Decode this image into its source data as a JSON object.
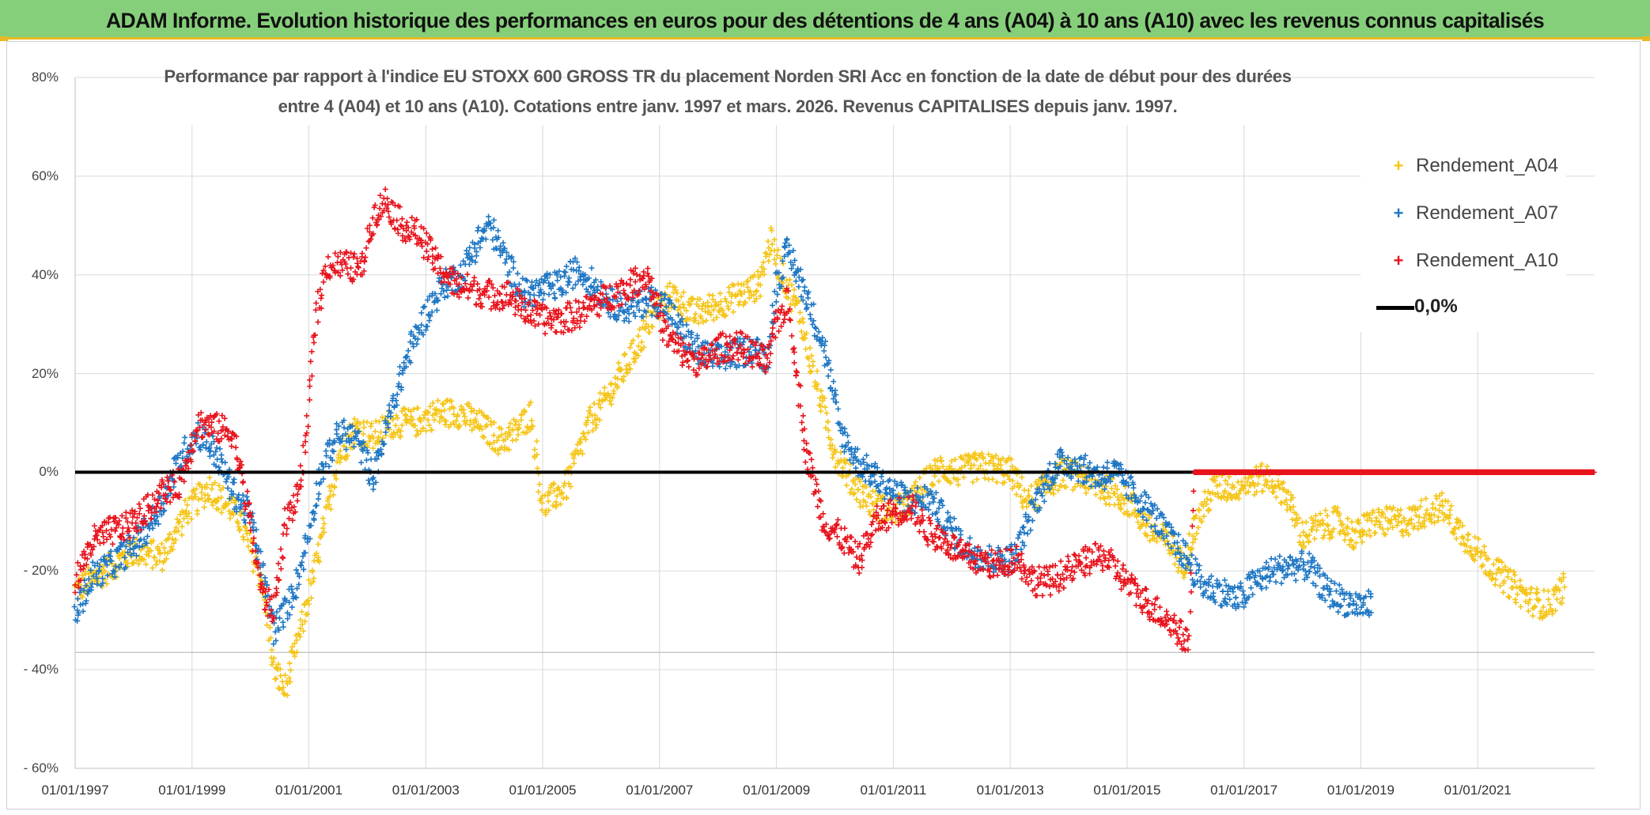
{
  "header": {
    "title": "ADAM Informe. Evolution historique des performances en euros pour des détentions de 4 ans (A04) à 10 ans (A10) avec les revenus connus capitalisés"
  },
  "colors": {
    "header_bg": "#86cf7a",
    "accent": "#e8b923",
    "A04": "#f5c518",
    "A07": "#1f77c4",
    "A10": "#e8141d",
    "zero_line": "#000000",
    "grid": "#d9d9d9"
  },
  "chart_data": {
    "type": "scatter",
    "title_line1": "Performance par rapport à l'indice EU STOXX 600 GROSS TR  du placement Norden SRI Acc en fonction de la date de début pour des durées",
    "title_line2": "entre 4 (A04) et 10 ans (A10). Cotations entre janv. 1997 et mars. 2026. Revenus CAPITALISES depuis janv. 1997.",
    "xlabel": "",
    "ylabel": "",
    "xlim": [
      1997.0,
      2023.0
    ],
    "ylim": [
      -60,
      80
    ],
    "y_ticks": [
      {
        "value": 80,
        "label": "80%"
      },
      {
        "value": 60,
        "label": "60%"
      },
      {
        "value": 40,
        "label": "40%"
      },
      {
        "value": 20,
        "label": "20%"
      },
      {
        "value": 0,
        "label": "0%"
      },
      {
        "value": -20,
        "label": "- 20%"
      },
      {
        "value": -40,
        "label": "- 40%"
      },
      {
        "value": -60,
        "label": "- 60%"
      }
    ],
    "x_ticks": [
      {
        "value": 1997,
        "label": "01/01/1997"
      },
      {
        "value": 1999,
        "label": "01/01/1999"
      },
      {
        "value": 2001,
        "label": "01/01/2001"
      },
      {
        "value": 2003,
        "label": "01/01/2003"
      },
      {
        "value": 2005,
        "label": "01/01/2005"
      },
      {
        "value": 2007,
        "label": "01/01/2007"
      },
      {
        "value": 2009,
        "label": "01/01/2009"
      },
      {
        "value": 2011,
        "label": "01/01/2011"
      },
      {
        "value": 2013,
        "label": "01/01/2013"
      },
      {
        "value": 2015,
        "label": "01/01/2015"
      },
      {
        "value": 2017,
        "label": "01/01/2017"
      },
      {
        "value": 2019,
        "label": "01/01/2019"
      },
      {
        "value": 2021,
        "label": "01/01/2021"
      }
    ],
    "grid": true,
    "legend_position": "top-right",
    "reference_line": {
      "name": "0,0%",
      "value": 0
    },
    "series": [
      {
        "name": "Rendement_A04",
        "marker": "+",
        "color_key": "A04",
        "x": [
          1997.0,
          1997.5,
          1998.0,
          1998.5,
          1998.9,
          1999.3,
          1999.8,
          2000.2,
          2000.4,
          2000.6,
          2000.9,
          2001.2,
          2001.5,
          2001.8,
          2002.1,
          2002.4,
          2002.8,
          2003.2,
          2003.6,
          2004.0,
          2004.3,
          2004.6,
          2004.8,
          2005.0,
          2005.4,
          2005.8,
          2006.1,
          2006.5,
          2006.9,
          2007.2,
          2007.6,
          2008.0,
          2008.4,
          2008.7,
          2008.9,
          2009.1,
          2009.4,
          2009.7,
          2010.0,
          2010.3,
          2010.6,
          2010.9,
          2011.2,
          2011.5,
          2011.8,
          2012.1,
          2012.4,
          2012.7,
          2013.0,
          2013.3,
          2013.6,
          2013.9,
          2014.2,
          2014.5,
          2014.8,
          2015.1,
          2015.4,
          2015.7,
          2015.95,
          2016.2,
          2016.5,
          2016.8,
          2017.1,
          2017.4,
          2017.7,
          2018.0,
          2018.3,
          2018.6,
          2018.9,
          2019.2,
          2019.5,
          2019.8,
          2020.1,
          2020.4,
          2020.7,
          2021.0,
          2021.3,
          2021.6,
          2021.9,
          2022.2,
          2022.5
        ],
        "values": [
          -24,
          -20,
          -16,
          -17,
          -8,
          -3,
          -9,
          -22,
          -40,
          -44,
          -30,
          -15,
          3,
          9,
          7,
          10,
          10,
          12,
          12,
          9,
          6,
          9,
          12,
          -7,
          -3,
          10,
          15,
          23,
          32,
          36,
          32,
          34,
          36,
          38,
          47,
          40,
          32,
          17,
          4,
          -2,
          -6,
          -8,
          -7,
          -3,
          1,
          0,
          1,
          1,
          0,
          -6,
          -3,
          0,
          -1,
          -3,
          -4,
          -7,
          -12,
          -14,
          -19,
          -10,
          -3,
          -3,
          -2,
          -1,
          -4,
          -13,
          -11,
          -10,
          -13,
          -10,
          -10,
          -10,
          -8,
          -7,
          -12,
          -16,
          -20,
          -23,
          -26,
          -27,
          -23
        ]
      },
      {
        "name": "Rendement_A07",
        "marker": "+",
        "color_key": "A07",
        "x": [
          1997.0,
          1997.3,
          1997.6,
          1997.9,
          1998.2,
          1998.5,
          1998.8,
          1999.1,
          1999.4,
          1999.7,
          2000.0,
          2000.2,
          2000.4,
          2000.6,
          2000.8,
          2001.0,
          2001.2,
          2001.5,
          2001.8,
          2002.1,
          2002.4,
          2002.7,
          2003.0,
          2003.3,
          2003.6,
          2003.9,
          2004.1,
          2004.4,
          2004.7,
          2005.0,
          2005.3,
          2005.6,
          2005.9,
          2006.2,
          2006.5,
          2006.8,
          2007.1,
          2007.4,
          2007.7,
          2008.0,
          2008.3,
          2008.6,
          2008.85,
          2009.0,
          2009.2,
          2009.5,
          2009.8,
          2010.1,
          2010.4,
          2010.7,
          2011.0,
          2011.3,
          2011.6,
          2011.9,
          2012.2,
          2012.5,
          2012.8,
          2013.1,
          2013.4,
          2013.7,
          2013.9,
          2014.2,
          2014.5,
          2014.8,
          2015.1,
          2015.4,
          2015.7,
          2016.0,
          2016.3,
          2016.6,
          2016.9,
          2017.2,
          2017.5,
          2017.8,
          2018.1,
          2018.4,
          2018.7,
          2019.0,
          2019.2
        ],
        "values": [
          -29,
          -21,
          -19,
          -16,
          -12,
          -6,
          3,
          8,
          4,
          -4,
          -9,
          -20,
          -32,
          -28,
          -22,
          -12,
          0,
          8,
          7,
          -1,
          12,
          24,
          32,
          38,
          40,
          47,
          50,
          42,
          36,
          37,
          38,
          41,
          38,
          34,
          33,
          35,
          34,
          28,
          24,
          23,
          24,
          25,
          23,
          38,
          45,
          36,
          26,
          8,
          2,
          -1,
          -4,
          -6,
          -5,
          -10,
          -15,
          -17,
          -18,
          -17,
          -7,
          0,
          2,
          1,
          -1,
          0,
          -4,
          -8,
          -13,
          -17,
          -23,
          -24,
          -26,
          -22,
          -20,
          -19,
          -19,
          -24,
          -26,
          -27,
          -27
        ]
      },
      {
        "name": "Rendement_A10",
        "marker": "+",
        "color_key": "A10",
        "x": [
          1997.0,
          1997.3,
          1997.6,
          1997.9,
          1998.2,
          1998.5,
          1998.8,
          1999.1,
          1999.4,
          1999.7,
          2000.0,
          2000.2,
          2000.4,
          2000.6,
          2000.8,
          2000.95,
          2001.1,
          2001.3,
          2001.6,
          2001.9,
          2002.1,
          2002.3,
          2002.6,
          2002.9,
          2003.2,
          2003.5,
          2003.8,
          2004.1,
          2004.4,
          2004.7,
          2005.0,
          2005.3,
          2005.6,
          2005.9,
          2006.2,
          2006.5,
          2006.8,
          2007.1,
          2007.4,
          2007.7,
          2008.0,
          2008.3,
          2008.6,
          2008.85,
          2009.0,
          2009.2,
          2009.5,
          2009.8,
          2010.1,
          2010.4,
          2010.7,
          2011.0,
          2011.3,
          2011.6,
          2011.9,
          2012.2,
          2012.5,
          2012.8,
          2013.1,
          2013.4,
          2013.7,
          2014.0,
          2014.3,
          2014.6,
          2014.9,
          2015.2,
          2015.5,
          2015.8,
          2016.05,
          2016.15,
          2016.5,
          2017.0,
          2017.5,
          2018.0,
          2018.5,
          2019.0,
          2019.5,
          2020.0,
          2020.5,
          2021.0,
          2021.5,
          2022.0,
          2022.5,
          2023.0
        ],
        "values": [
          -22,
          -14,
          -12,
          -11,
          -8,
          -4,
          -2,
          10,
          9,
          8,
          -10,
          -25,
          -28,
          -10,
          -5,
          5,
          30,
          42,
          42,
          41,
          52,
          55,
          50,
          48,
          42,
          38,
          37,
          36,
          36,
          33,
          31,
          31,
          32,
          34,
          36,
          38,
          40,
          28,
          24,
          22,
          25,
          26,
          24,
          22,
          30,
          35,
          5,
          -10,
          -13,
          -18,
          -10,
          -8,
          -7,
          -12,
          -14,
          -17,
          -18,
          -19,
          -17,
          -22,
          -22,
          -20,
          -18,
          -17,
          -21,
          -25,
          -28,
          -31,
          -35,
          0,
          0,
          0,
          0,
          0,
          0,
          0,
          0,
          0,
          0,
          0,
          0,
          0,
          0,
          0
        ]
      }
    ]
  }
}
